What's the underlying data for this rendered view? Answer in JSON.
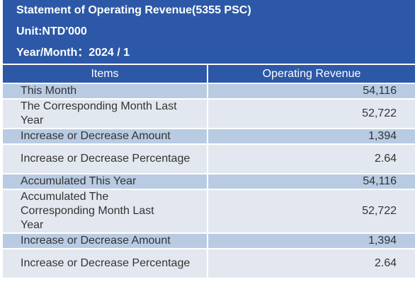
{
  "header": {
    "title": "Statement of Operating Revenue(5355 PSC)",
    "unit": "Unit:NTD'000",
    "year_month": "Year/Month：2024 / 1"
  },
  "table": {
    "columns": [
      "Items",
      "Operating Revenue"
    ],
    "rows": [
      {
        "item": "This Month",
        "value": "54,116"
      },
      {
        "item": "The Corresponding Month Last Year",
        "value": "52,722"
      },
      {
        "item": "Increase or Decrease Amount",
        "value": "1,394"
      },
      {
        "item": "Increase or Decrease Percentage",
        "value": "2.64"
      },
      {
        "item": "Accumulated This Year",
        "value": "54,116"
      },
      {
        "item": "Accumulated The Corresponding Month Last Year",
        "value": "52,722"
      },
      {
        "item": "Increase or Decrease Amount",
        "value": "1,394"
      },
      {
        "item": "Increase or Decrease Percentage",
        "value": "2.64"
      }
    ]
  },
  "colors": {
    "header_bg": "#2c58a7",
    "row_dark": "#b8cbe3",
    "row_light": "#e3e8f0"
  }
}
